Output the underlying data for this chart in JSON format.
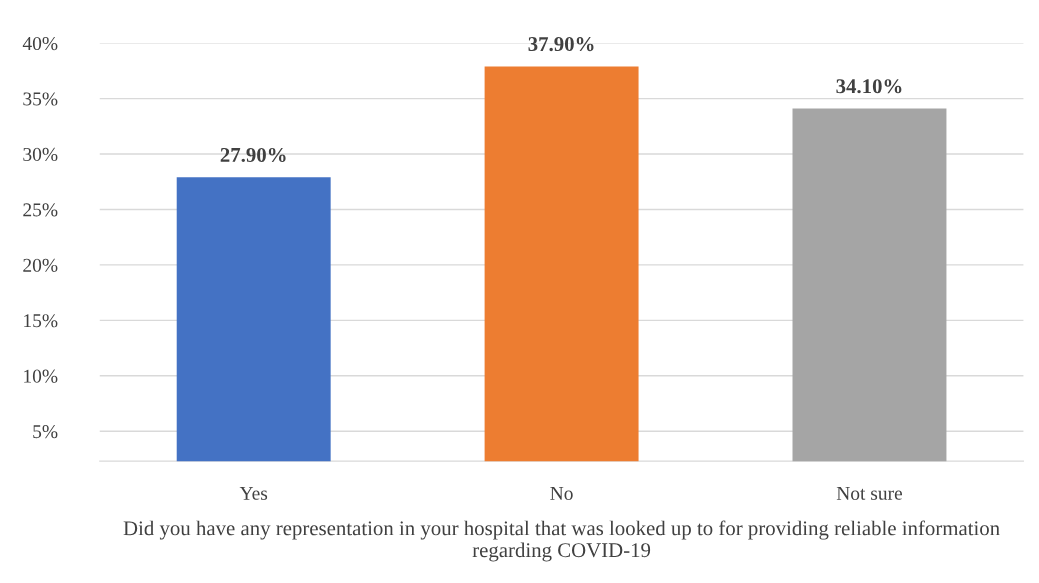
{
  "chart_data": {
    "type": "bar",
    "categories": [
      "Yes",
      "No",
      "Not sure"
    ],
    "values": [
      27.9,
      37.9,
      34.1
    ],
    "colors": [
      "#4472c4",
      "#ed7d31",
      "#a5a5a5"
    ],
    "value_labels": [
      "27.90%",
      "37.90%",
      "34.10%"
    ],
    "xlabel": "Did you have any representation in your hospital that was looked up to for providing reliable information regarding COVID-19",
    "ylim": [
      2.3,
      40
    ],
    "yticks": [
      {
        "value": 5,
        "label": "5%"
      },
      {
        "value": 10,
        "label": "10%"
      },
      {
        "value": 15,
        "label": "15%"
      },
      {
        "value": 20,
        "label": "20%"
      },
      {
        "value": 25,
        "label": "25%"
      },
      {
        "value": 30,
        "label": "30%"
      },
      {
        "value": 35,
        "label": "35%"
      },
      {
        "value": 40,
        "label": "40%"
      }
    ],
    "grid": "y"
  }
}
